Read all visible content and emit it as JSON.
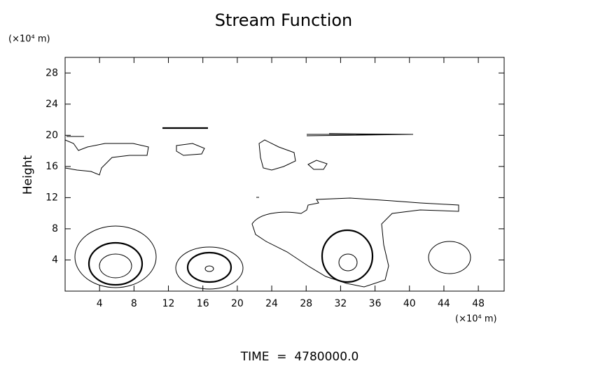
{
  "chart_data": {
    "type": "contour",
    "title": "Stream Function",
    "y_unit": "(×10⁴ m)",
    "x_unit": "(×10⁴ m)",
    "ylabel": "Height",
    "footer": "TIME  =  4780000.0",
    "xlim": [
      0,
      51
    ],
    "xticks": [
      4,
      8,
      12,
      16,
      20,
      24,
      28,
      32,
      36,
      40,
      44,
      48
    ],
    "ylim": [
      0,
      30
    ],
    "yticks": [
      4,
      8,
      12,
      16,
      20,
      24,
      28
    ]
  }
}
